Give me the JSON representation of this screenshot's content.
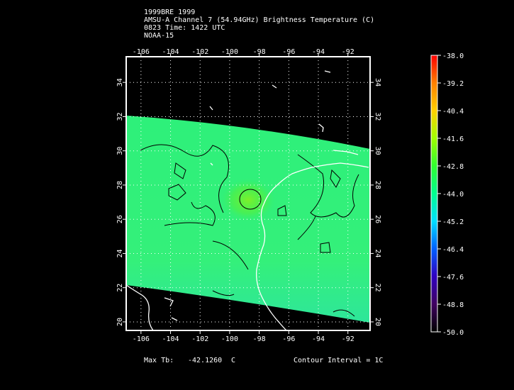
{
  "header": {
    "line1": "1999BRE 1999",
    "line2": "AMSU-A Channel 7 (54.94GHz) Brightness Temperature (C)",
    "line3": "0823 Time: 1422 UTC",
    "line4": "NOAA-15"
  },
  "map": {
    "lon_ticks": [
      "-106",
      "-104",
      "-102",
      "-100",
      "-98",
      "-96",
      "-94",
      "-92"
    ],
    "lat_ticks": [
      "20",
      "22",
      "24",
      "26",
      "28",
      "30",
      "32",
      "34"
    ],
    "lon_range": [
      -107,
      -90.5
    ],
    "lat_range": [
      19.5,
      35.5
    ],
    "swath_color": "#2ef07a",
    "background": "#000000",
    "coast_color": "#ffffff",
    "contour_color": "#000000",
    "grid": "dotted white"
  },
  "footer": {
    "max_label": "Max Tb:",
    "max_value": "-42.1260",
    "max_unit": "C",
    "contour_label": "Contour Interval = 1C"
  },
  "colorbar": {
    "labels": [
      "-38.0",
      "-39.2",
      "-40.4",
      "-41.6",
      "-42.8",
      "-44.0",
      "-45.2",
      "-46.4",
      "-47.6",
      "-48.8",
      "-50.0"
    ],
    "stops": [
      "#ff0000",
      "#ff8000",
      "#ffd000",
      "#a0ff00",
      "#30ff30",
      "#00ff90",
      "#00e0ff",
      "#0060ff",
      "#3000c0",
      "#400060",
      "#000000"
    ]
  }
}
